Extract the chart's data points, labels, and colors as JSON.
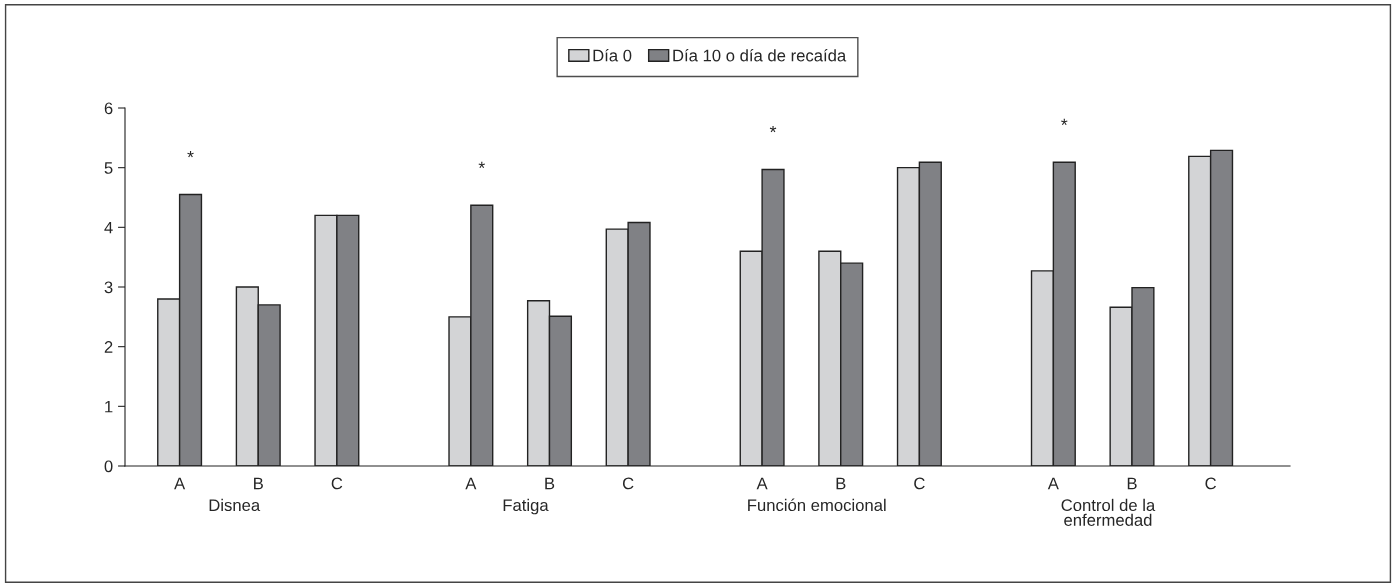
{
  "chart_data": {
    "type": "bar",
    "categories": [
      "A",
      "B",
      "C",
      "A",
      "B",
      "C",
      "A",
      "B",
      "C",
      "A",
      "B",
      "C"
    ],
    "series": [
      {
        "name": "Día 0",
        "color": "#d3d4d6",
        "values": [
          2.8,
          3.0,
          4.2,
          2.5,
          2.77,
          3.97,
          3.6,
          3.6,
          5.0,
          3.27,
          2.66,
          5.19
        ]
      },
      {
        "name": "Día 10 o día de recaída",
        "color": "#808185",
        "values": [
          4.55,
          2.7,
          4.2,
          4.37,
          2.51,
          4.08,
          4.97,
          3.4,
          5.09,
          5.09,
          2.99,
          5.29
        ]
      }
    ],
    "ylim": [
      0,
      6
    ],
    "yticks": [
      0,
      1,
      2,
      3,
      4,
      5,
      6
    ],
    "annotations": [
      "Disnea",
      "Fatiga",
      "Función emocional",
      "Control de la\nenfermedad",
      "*",
      "*",
      "*",
      "*"
    ],
    "legend": "top",
    "grid": false
  }
}
